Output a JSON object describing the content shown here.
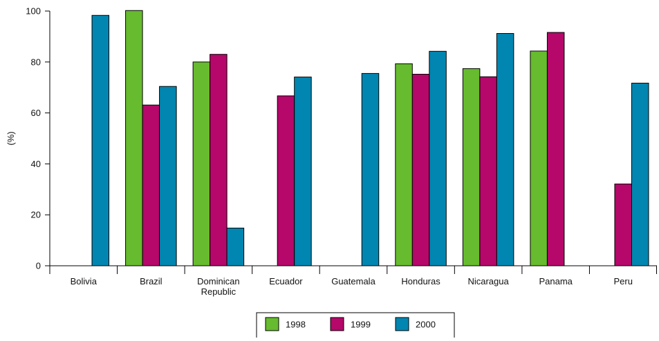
{
  "chart_data": {
    "type": "bar",
    "title": "",
    "xlabel": "",
    "ylabel": "(%)",
    "ylim": [
      0,
      100
    ],
    "yticks": [
      0,
      20,
      40,
      60,
      80,
      100
    ],
    "grid": false,
    "legend_position": "bottom-center",
    "categories": [
      [
        "Bolivia"
      ],
      [
        "Brazil"
      ],
      [
        "Dominican",
        "Republic"
      ],
      [
        "Ecuador"
      ],
      [
        "Guatemala"
      ],
      [
        "Honduras"
      ],
      [
        "Nicaragua"
      ],
      [
        "Panama"
      ],
      [
        "Peru"
      ]
    ],
    "series": [
      {
        "name": "1998",
        "color": "#66bb2e",
        "values": [
          null,
          100.2,
          80,
          null,
          null,
          79.3,
          77.4,
          84.3,
          null
        ]
      },
      {
        "name": "1999",
        "color": "#b5086a",
        "values": [
          null,
          63.1,
          83,
          66.7,
          null,
          75.2,
          74.2,
          91.6,
          32.1
        ]
      },
      {
        "name": "2000",
        "color": "#0086b0",
        "values": [
          98.3,
          70.4,
          14.8,
          74.1,
          75.5,
          84.2,
          91.2,
          null,
          71.7
        ]
      }
    ]
  }
}
